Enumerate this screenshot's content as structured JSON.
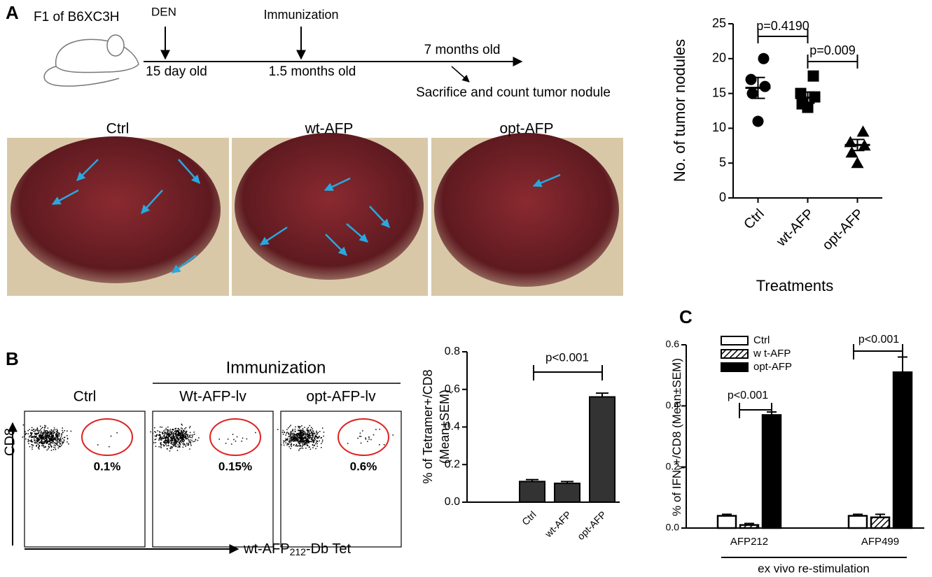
{
  "panel_labels": [
    "A",
    "B",
    "C"
  ],
  "timeline": {
    "strain": "F1 of B6XC3H",
    "events": [
      "DEN",
      "Immunization"
    ],
    "times": [
      "15 day old",
      "1.5 months old",
      "7 months old"
    ],
    "end": "Sacrifice and count tumor nodule"
  },
  "photos": {
    "labels": [
      "Ctrl",
      "wt-AFP",
      "opt-AFP"
    ]
  },
  "flow": {
    "heading": "Immunization",
    "labels": [
      "Ctrl",
      "Wt-AFP-lv",
      "opt-AFP-lv"
    ],
    "percents": [
      "0.1%",
      "0.15%",
      "0.6%"
    ],
    "y_label": "CD8",
    "x_label": [
      "wt-AFP",
      "212",
      "-Db Tet"
    ]
  },
  "chart_data": [
    {
      "type": "dot",
      "y_label": "No. of tumor nodules",
      "x_label": "Treatments",
      "categories": [
        "Ctrl",
        "wt-AFP",
        "opt-AFP"
      ],
      "markers": [
        "circle",
        "square",
        "triangle"
      ],
      "color": "#000000",
      "points": [
        [
          20,
          17,
          16,
          15,
          11
        ],
        [
          17.5,
          15,
          14.5,
          13.5,
          13
        ],
        [
          9.5,
          8,
          7.5,
          6.5,
          5
        ]
      ],
      "means": [
        15.8,
        14.4,
        7.6
      ],
      "sems": [
        1.5,
        0.8,
        0.8
      ],
      "annotations": [
        "p=0.4190",
        "p=0.009"
      ],
      "ylim": [
        0,
        25
      ],
      "yticks": [
        0,
        5,
        10,
        15,
        20,
        25
      ]
    },
    {
      "type": "bar",
      "y_label": [
        "% of Tetramer+/CD8",
        "(Mean±SEM)"
      ],
      "categories": [
        "Ctrl",
        "wt-AFP",
        "opt-AFP"
      ],
      "values": [
        0.11,
        0.1,
        0.56
      ],
      "errors": [
        0.01,
        0.01,
        0.02
      ],
      "color": "#333333",
      "annotations": [
        "p<0.001"
      ],
      "ylim": [
        0,
        0.8
      ],
      "yticks": [
        {
          "value": 0,
          "label": "0.0"
        },
        0.2,
        0.4,
        0.6,
        0.8
      ]
    },
    {
      "type": "grouped_bar",
      "y_label": [
        "% of IFN",
        "γ",
        "+/CD8 (Mean±SEM)"
      ],
      "x_label": "ex vivo re-stimulation",
      "categories": [
        "AFP212",
        "AFP499"
      ],
      "series": [
        {
          "name": "Ctrl",
          "color": "#ffffff",
          "pattern": "none",
          "values": [
            0.04,
            0.04
          ],
          "errors": [
            0.005,
            0.005
          ]
        },
        {
          "name": "w t-AFP",
          "color": "#ffffff",
          "pattern": "hatch",
          "values": [
            0.01,
            0.035
          ],
          "errors": [
            0.005,
            0.01
          ]
        },
        {
          "name": "opt-AFP",
          "color": "#000000",
          "pattern": "none",
          "values": [
            0.37,
            0.51
          ],
          "errors": [
            0.01,
            0.05
          ]
        }
      ],
      "annotations": [
        "p<0.001",
        "p<0.001"
      ],
      "ylim": [
        0,
        0.6
      ],
      "yticks": [
        {
          "value": 0,
          "label": "0.0"
        },
        0.2,
        0.4,
        0.6
      ]
    }
  ]
}
